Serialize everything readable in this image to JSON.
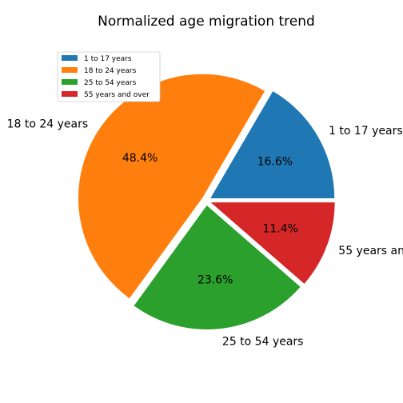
{
  "chart_data": {
    "type": "pie",
    "title": "Normalized age migration trend",
    "categories": [
      "1 to 17 years",
      "18 to 24 years",
      "25 to 54 years",
      "55 years and over"
    ],
    "values": [
      16.6,
      48.4,
      23.6,
      11.4
    ],
    "percent_labels": [
      "16.6%",
      "48.4%",
      "23.6%",
      "11.4%"
    ],
    "colors": [
      "#1f77b4",
      "#ff7f0e",
      "#2ca02c",
      "#d62728"
    ],
    "explode": true,
    "start_angle": 0,
    "legend": {
      "placement": "upper-left",
      "entries": [
        "1 to 17 years",
        "18 to 24 years",
        "25 to 54 years",
        "55 years and over"
      ]
    }
  }
}
